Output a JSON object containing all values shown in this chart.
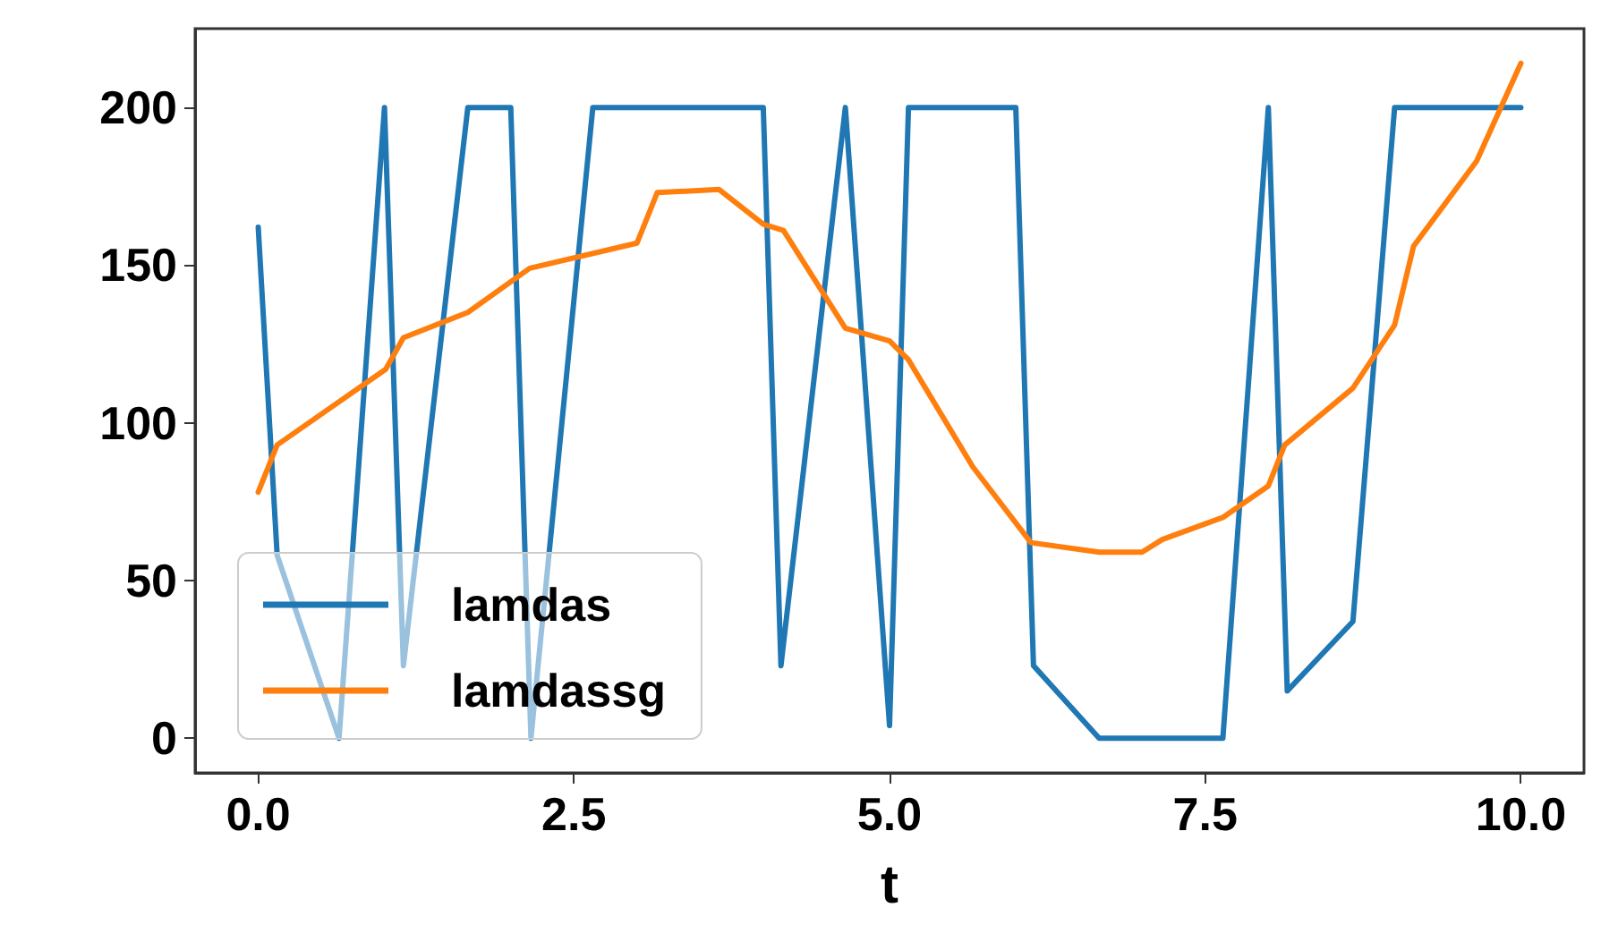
{
  "chart_data": {
    "type": "line",
    "xlabel": "t",
    "xlim": [
      -0.5,
      10.5
    ],
    "xticks": [
      {
        "value": 0,
        "label": "0.0"
      },
      {
        "value": 2.5,
        "label": "2.5"
      },
      {
        "value": 5,
        "label": "5.0"
      },
      {
        "value": 7.5,
        "label": "7.5"
      },
      {
        "value": 10,
        "label": "10.0"
      }
    ],
    "ylim": [
      -11,
      225
    ],
    "yticks": [
      0,
      50,
      100,
      150,
      200
    ],
    "grid": false,
    "legend": "bottom left",
    "marker": "none",
    "line_style": "solid",
    "series": [
      {
        "name": "lamdas",
        "color": "#1f77b4",
        "x": [
          0,
          0.15,
          0.64,
          1.0,
          1.15,
          1.66,
          2.0,
          2.16,
          2.65,
          4.0,
          4.14,
          4.65,
          5.0,
          5.15,
          6.0,
          6.14,
          6.66,
          7.64,
          8.0,
          8.15,
          8.67,
          9.0,
          10.0
        ],
        "values": [
          162,
          58,
          0,
          200,
          23,
          200,
          200,
          0,
          200,
          200,
          23,
          200,
          4,
          200,
          200,
          23,
          0,
          0,
          200,
          15,
          37,
          200,
          200
        ]
      },
      {
        "name": "lamdassg",
        "color": "#ff7f0e",
        "x": [
          0,
          0.15,
          1.01,
          1.15,
          1.66,
          2.15,
          3.0,
          3.16,
          3.65,
          4.0,
          4.16,
          4.65,
          5.0,
          5.15,
          5.66,
          6.12,
          6.66,
          7.0,
          7.16,
          7.64,
          8.0,
          8.13,
          8.67,
          9.0,
          9.15,
          9.65,
          10.0
        ],
        "values": [
          78,
          93,
          117,
          127,
          135,
          149,
          157,
          173,
          174,
          163,
          161,
          130,
          126,
          120,
          86,
          62,
          59,
          59,
          63,
          70,
          80,
          93,
          111,
          131,
          156,
          183,
          214
        ]
      }
    ]
  }
}
